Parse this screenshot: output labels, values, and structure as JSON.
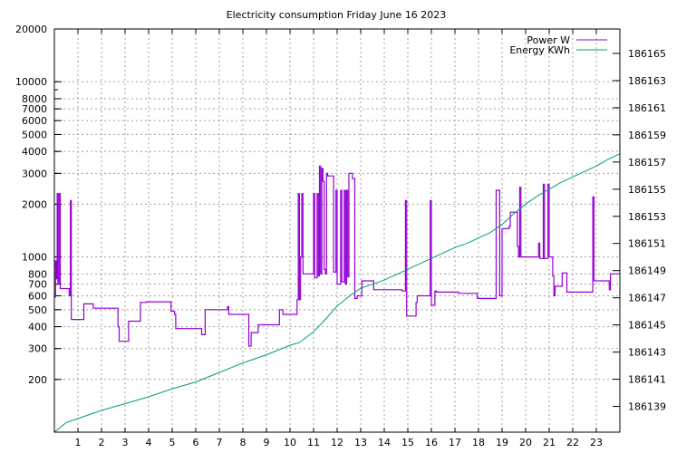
{
  "chart_data": {
    "type": "line",
    "title": "Electricity consumption Friday June 16 2023",
    "xlabel": "",
    "ylabel": "",
    "y2label": "",
    "grid": true,
    "legend_position": "top-right",
    "x_range": [
      0,
      24
    ],
    "x_ticks": [
      "1",
      "2",
      "3",
      "4",
      "5",
      "6",
      "7",
      "8",
      "9",
      "10",
      "11",
      "12",
      "13",
      "14",
      "15",
      "16",
      "17",
      "18",
      "19",
      "20",
      "21",
      "22",
      "23"
    ],
    "y_scale": "log",
    "y_range": [
      100,
      20000
    ],
    "y_ticks": [
      "200",
      "300",
      "400",
      "500",
      "600",
      "700",
      "800",
      "1000",
      "2000",
      "3000",
      "4000",
      "5000",
      "6000",
      "7000",
      "8000",
      "10000",
      "20000"
    ],
    "y2_range": [
      186137.1,
      186166.8
    ],
    "y2_ticks": [
      "186139",
      "186141",
      "186143",
      "186145",
      "186147",
      "186149",
      "186151",
      "186153",
      "186155",
      "186157",
      "186159",
      "186161",
      "186163",
      "186165"
    ],
    "colors": {
      "power": "#9400d3",
      "energy": "#009e73"
    },
    "series": [
      {
        "name": "Power W",
        "axis": "left",
        "color": "#9400d3",
        "points": [
          [
            0.0,
            590
          ],
          [
            0.05,
            950
          ],
          [
            0.08,
            750
          ],
          [
            0.12,
            2300
          ],
          [
            0.15,
            700
          ],
          [
            0.2,
            2300
          ],
          [
            0.25,
            660
          ],
          [
            0.6,
            660
          ],
          [
            0.63,
            600
          ],
          [
            0.68,
            2100
          ],
          [
            0.72,
            440
          ],
          [
            1.2,
            440
          ],
          [
            1.25,
            540
          ],
          [
            1.6,
            540
          ],
          [
            1.65,
            510
          ],
          [
            2.65,
            510
          ],
          [
            2.7,
            400
          ],
          [
            2.75,
            330
          ],
          [
            3.1,
            330
          ],
          [
            3.15,
            430
          ],
          [
            3.6,
            430
          ],
          [
            3.65,
            550
          ],
          [
            3.9,
            555
          ],
          [
            4.9,
            555
          ],
          [
            4.95,
            490
          ],
          [
            5.1,
            470
          ],
          [
            5.15,
            390
          ],
          [
            6.2,
            390
          ],
          [
            6.25,
            360
          ],
          [
            6.35,
            360
          ],
          [
            6.4,
            500
          ],
          [
            7.3,
            500
          ],
          [
            7.35,
            520
          ],
          [
            7.4,
            470
          ],
          [
            8.2,
            470
          ],
          [
            8.25,
            310
          ],
          [
            8.3,
            310
          ],
          [
            8.35,
            370
          ],
          [
            8.6,
            370
          ],
          [
            8.65,
            410
          ],
          [
            9.5,
            410
          ],
          [
            9.55,
            500
          ],
          [
            9.65,
            500
          ],
          [
            9.7,
            470
          ],
          [
            10.25,
            470
          ],
          [
            10.3,
            570
          ],
          [
            10.35,
            2300
          ],
          [
            10.4,
            570
          ],
          [
            10.45,
            1000
          ],
          [
            10.5,
            2300
          ],
          [
            10.55,
            800
          ],
          [
            10.95,
            800
          ],
          [
            11.0,
            2300
          ],
          [
            11.05,
            760
          ],
          [
            11.15,
            2300
          ],
          [
            11.2,
            780
          ],
          [
            11.25,
            3300
          ],
          [
            11.3,
            800
          ],
          [
            11.35,
            3200
          ],
          [
            11.4,
            2700
          ],
          [
            11.45,
            850
          ],
          [
            11.5,
            800
          ],
          [
            11.55,
            3000
          ],
          [
            11.6,
            2900
          ],
          [
            11.8,
            2900
          ],
          [
            11.85,
            820
          ],
          [
            11.9,
            820
          ],
          [
            11.95,
            2400
          ],
          [
            12.0,
            700
          ],
          [
            12.1,
            700
          ],
          [
            12.15,
            2400
          ],
          [
            12.2,
            720
          ],
          [
            12.25,
            720
          ],
          [
            12.3,
            2400
          ],
          [
            12.35,
            700
          ],
          [
            12.4,
            2400
          ],
          [
            12.45,
            770
          ],
          [
            12.5,
            3000
          ],
          [
            12.6,
            3000
          ],
          [
            12.65,
            2800
          ],
          [
            12.7,
            2800
          ],
          [
            12.75,
            580
          ],
          [
            12.8,
            580
          ],
          [
            12.85,
            600
          ],
          [
            13.0,
            600
          ],
          [
            13.05,
            730
          ],
          [
            13.5,
            730
          ],
          [
            13.55,
            650
          ],
          [
            14.7,
            650
          ],
          [
            14.75,
            640
          ],
          [
            14.85,
            640
          ],
          [
            14.9,
            2100
          ],
          [
            14.95,
            460
          ],
          [
            15.3,
            460
          ],
          [
            15.35,
            550
          ],
          [
            15.4,
            600
          ],
          [
            15.9,
            600
          ],
          [
            15.95,
            2100
          ],
          [
            16.0,
            530
          ],
          [
            16.1,
            530
          ],
          [
            16.15,
            640
          ],
          [
            16.2,
            630
          ],
          [
            17.1,
            630
          ],
          [
            17.15,
            620
          ],
          [
            17.9,
            620
          ],
          [
            17.95,
            580
          ],
          [
            18.7,
            580
          ],
          [
            18.75,
            2400
          ],
          [
            18.9,
            600
          ],
          [
            18.95,
            600
          ],
          [
            19.0,
            1450
          ],
          [
            19.3,
            1500
          ],
          [
            19.35,
            1800
          ],
          [
            19.6,
            1800
          ],
          [
            19.65,
            1150
          ],
          [
            19.7,
            1000
          ],
          [
            19.75,
            2500
          ],
          [
            19.8,
            1000
          ],
          [
            20.5,
            1000
          ],
          [
            20.55,
            1200
          ],
          [
            20.6,
            980
          ],
          [
            20.7,
            980
          ],
          [
            20.75,
            2600
          ],
          [
            20.8,
            980
          ],
          [
            20.9,
            980
          ],
          [
            20.95,
            2600
          ],
          [
            21.0,
            1000
          ],
          [
            21.1,
            1000
          ],
          [
            21.15,
            780
          ],
          [
            21.2,
            600
          ],
          [
            21.25,
            680
          ],
          [
            21.5,
            680
          ],
          [
            21.55,
            810
          ],
          [
            21.7,
            810
          ],
          [
            21.75,
            630
          ],
          [
            22.8,
            630
          ],
          [
            22.85,
            2200
          ],
          [
            22.9,
            730
          ],
          [
            23.5,
            730
          ],
          [
            23.55,
            650
          ],
          [
            23.6,
            800
          ],
          [
            24.0,
            800
          ]
        ]
      },
      {
        "name": "Energy KWh",
        "axis": "right",
        "color": "#009e73",
        "points": [
          [
            0.0,
            186137.1
          ],
          [
            0.5,
            186137.8
          ],
          [
            1.0,
            186138.1
          ],
          [
            2.0,
            186138.7
          ],
          [
            3.0,
            186139.2
          ],
          [
            4.0,
            186139.7
          ],
          [
            5.0,
            186140.3
          ],
          [
            6.0,
            186140.8
          ],
          [
            7.0,
            186141.5
          ],
          [
            8.0,
            186142.2
          ],
          [
            9.0,
            186142.8
          ],
          [
            10.0,
            186143.5
          ],
          [
            10.4,
            186143.7
          ],
          [
            11.0,
            186144.5
          ],
          [
            11.5,
            186145.4
          ],
          [
            12.0,
            186146.4
          ],
          [
            12.5,
            186147.1
          ],
          [
            13.0,
            186147.7
          ],
          [
            13.5,
            186148.0
          ],
          [
            14.0,
            186148.3
          ],
          [
            14.5,
            186148.7
          ],
          [
            15.0,
            186149.1
          ],
          [
            15.5,
            186149.5
          ],
          [
            16.0,
            186149.9
          ],
          [
            16.5,
            186150.3
          ],
          [
            17.0,
            186150.7
          ],
          [
            17.5,
            186151.0
          ],
          [
            18.0,
            186151.4
          ],
          [
            18.5,
            186151.8
          ],
          [
            19.0,
            186152.4
          ],
          [
            19.5,
            186153.2
          ],
          [
            20.0,
            186153.9
          ],
          [
            20.5,
            186154.5
          ],
          [
            21.0,
            186155.0
          ],
          [
            21.5,
            186155.5
          ],
          [
            22.0,
            186155.9
          ],
          [
            22.5,
            186156.3
          ],
          [
            23.0,
            186156.7
          ],
          [
            23.5,
            186157.2
          ],
          [
            24.0,
            186157.6
          ]
        ]
      }
    ]
  }
}
